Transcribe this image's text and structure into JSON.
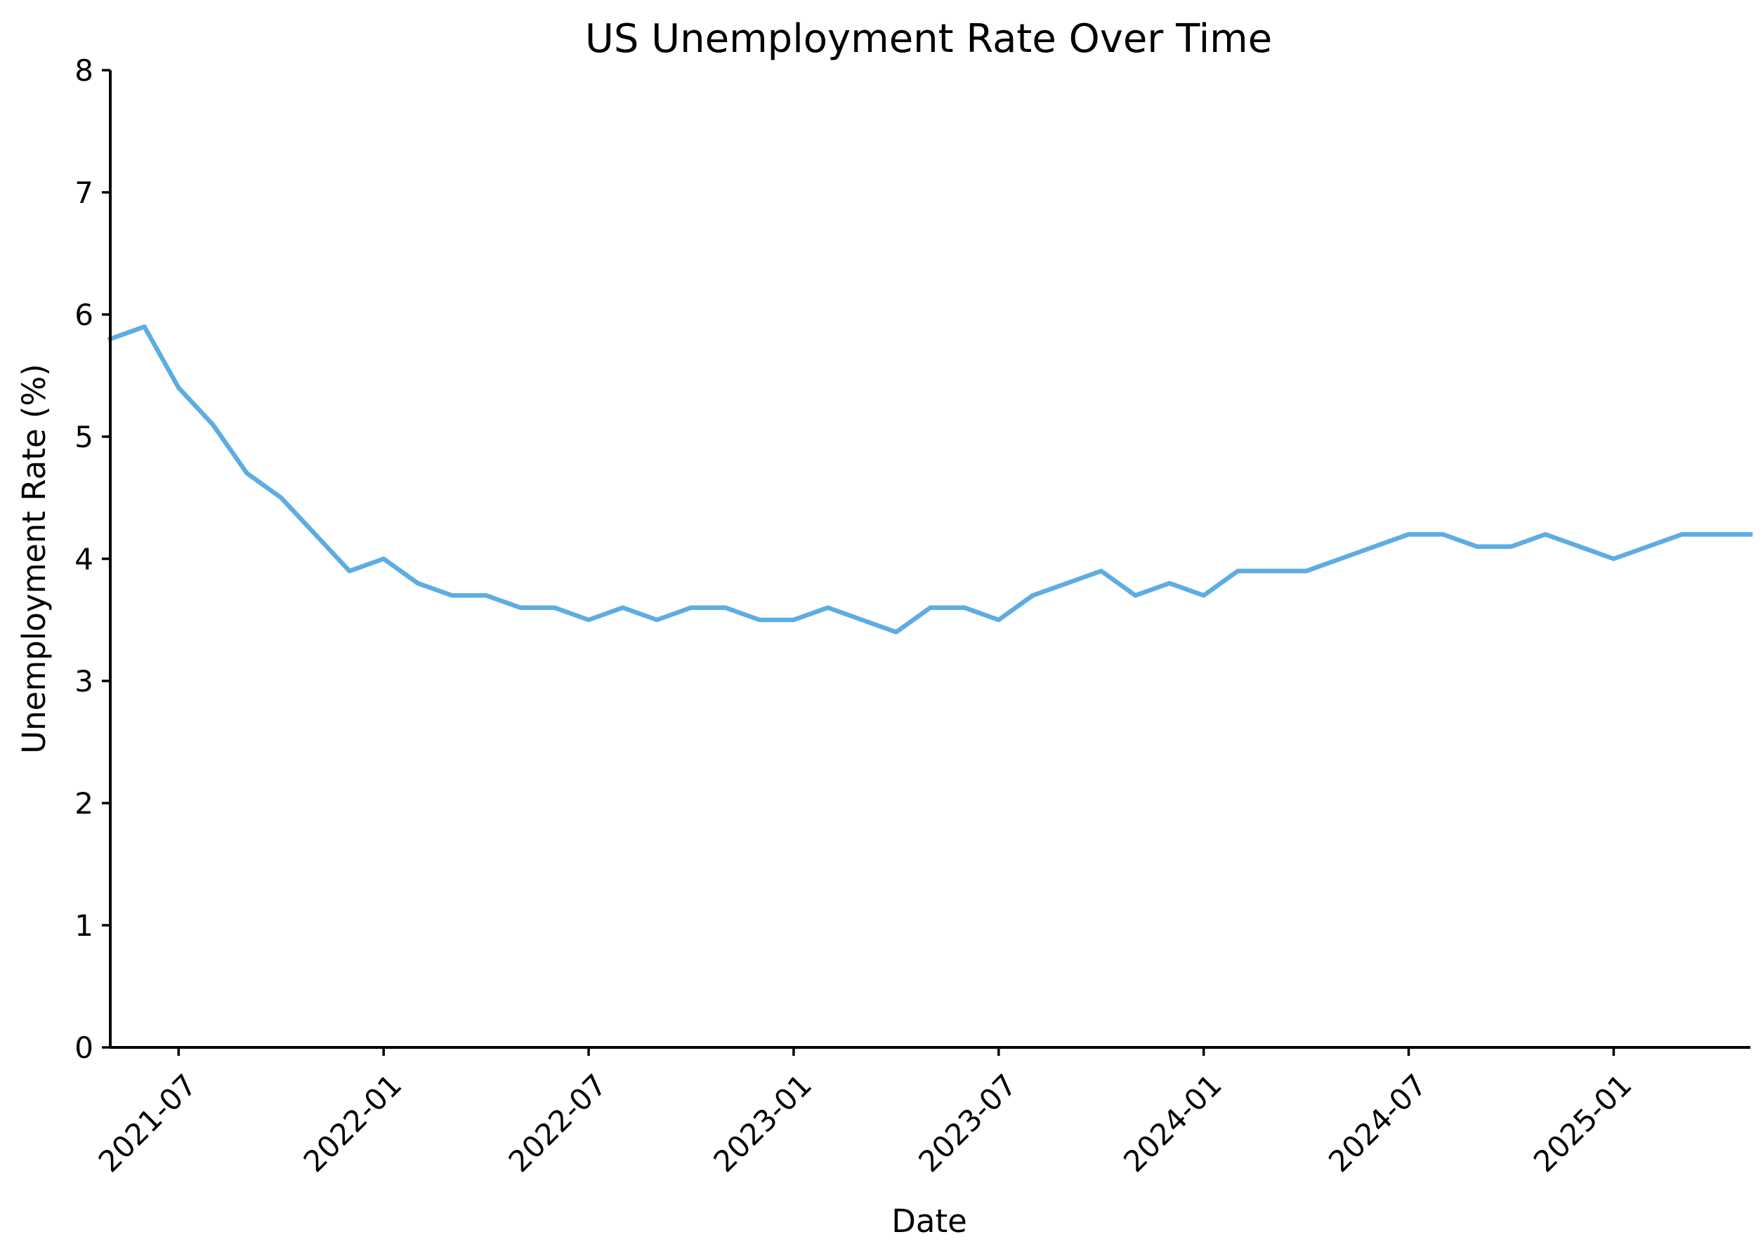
{
  "chart_data": {
    "type": "line",
    "title": "US Unemployment Rate Over Time",
    "xlabel": "Date",
    "ylabel": "Unemployment Rate (%)",
    "x_type": "date",
    "xlim": [
      "2021-05-01",
      "2025-05-01"
    ],
    "ylim": [
      0,
      8
    ],
    "x_ticks": [
      "2021-07",
      "2022-01",
      "2022-07",
      "2023-01",
      "2023-07",
      "2024-01",
      "2024-07",
      "2025-01"
    ],
    "y_ticks": [
      "0",
      "1",
      "2",
      "3",
      "4",
      "5",
      "6",
      "7",
      "8"
    ],
    "x_tick_rotation": 45,
    "grid": false,
    "legend": "none",
    "line_color": "#5DADE2",
    "series": [
      {
        "x": [
          "2021-05",
          "2021-06",
          "2021-07",
          "2021-08",
          "2021-09",
          "2021-10",
          "2021-11",
          "2021-12",
          "2022-01",
          "2022-02",
          "2022-03",
          "2022-04",
          "2022-05",
          "2022-06",
          "2022-07",
          "2022-08",
          "2022-09",
          "2022-10",
          "2022-11",
          "2022-12",
          "2023-01",
          "2023-02",
          "2023-03",
          "2023-04",
          "2023-05",
          "2023-06",
          "2023-07",
          "2023-08",
          "2023-09",
          "2023-10",
          "2023-11",
          "2023-12",
          "2024-01",
          "2024-02",
          "2024-03",
          "2024-04",
          "2024-05",
          "2024-06",
          "2024-07",
          "2024-08",
          "2024-09",
          "2024-10",
          "2024-11",
          "2024-12",
          "2025-01",
          "2025-02",
          "2025-03",
          "2025-04",
          "2025-05"
        ],
        "values": [
          5.8,
          5.9,
          5.4,
          5.1,
          4.7,
          4.5,
          4.2,
          3.9,
          4.0,
          3.8,
          3.7,
          3.7,
          3.6,
          3.6,
          3.5,
          3.6,
          3.5,
          3.6,
          3.6,
          3.5,
          3.5,
          3.6,
          3.5,
          3.4,
          3.6,
          3.6,
          3.5,
          3.7,
          3.8,
          3.9,
          3.7,
          3.8,
          3.7,
          3.9,
          3.9,
          3.9,
          4.0,
          4.1,
          4.2,
          4.2,
          4.1,
          4.1,
          4.2,
          4.1,
          4.0,
          4.1,
          4.2,
          4.2,
          4.2
        ]
      }
    ]
  }
}
